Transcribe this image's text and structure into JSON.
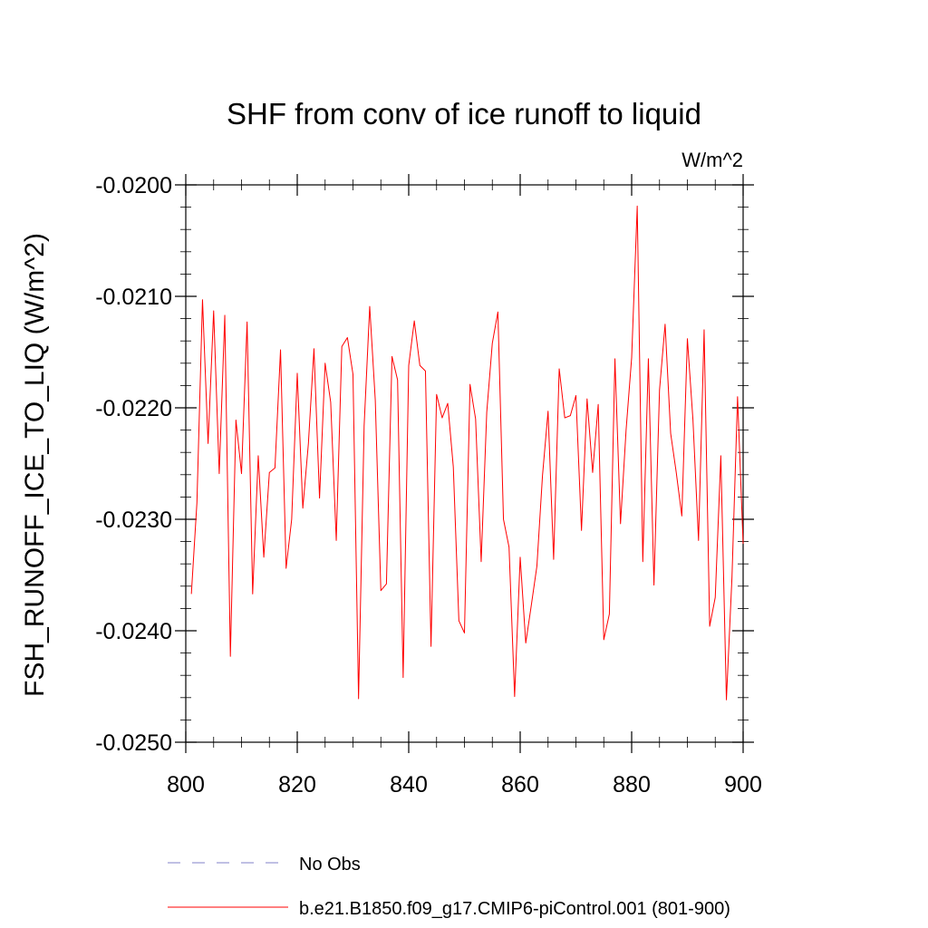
{
  "chart_data": {
    "type": "line",
    "title": "SHF from conv of ice runoff to liquid",
    "units": "W/m^2",
    "xlabel": "",
    "ylabel": "FSH_RUNOFF_ICE_TO_LIQ  (W/m^2)",
    "xlim": [
      800,
      900
    ],
    "ylim": [
      -0.025,
      -0.02
    ],
    "x_ticks": [
      800,
      820,
      840,
      860,
      880,
      900
    ],
    "y_ticks": [
      -0.025,
      -0.024,
      -0.023,
      -0.022,
      -0.021,
      -0.02
    ],
    "y_tick_labels": [
      "-0.0250",
      "-0.0240",
      "-0.0230",
      "-0.0220",
      "-0.0210",
      "-0.0200"
    ],
    "x": [
      801,
      802,
      803,
      804,
      805,
      806,
      807,
      808,
      809,
      810,
      811,
      812,
      813,
      814,
      815,
      816,
      817,
      818,
      819,
      820,
      821,
      822,
      823,
      824,
      825,
      826,
      827,
      828,
      829,
      830,
      831,
      832,
      833,
      834,
      835,
      836,
      837,
      838,
      839,
      840,
      841,
      842,
      843,
      844,
      845,
      846,
      847,
      848,
      849,
      850,
      851,
      852,
      853,
      854,
      855,
      856,
      857,
      858,
      859,
      860,
      861,
      862,
      863,
      864,
      865,
      866,
      867,
      868,
      869,
      870,
      871,
      872,
      873,
      874,
      875,
      876,
      877,
      878,
      879,
      880,
      881,
      882,
      883,
      884,
      885,
      886,
      887,
      888,
      889,
      890,
      891,
      892,
      893,
      894,
      895,
      896,
      897,
      898,
      899,
      900
    ],
    "series": [
      {
        "name": "b.e21.B1850.f09_g17.CMIP6-piControl.001 (801-900)",
        "color": "#ff0000",
        "values": [
          -0.02367,
          -0.02285,
          -0.02103,
          -0.02232,
          -0.02113,
          -0.02259,
          -0.02117,
          -0.02423,
          -0.02211,
          -0.02259,
          -0.02123,
          -0.02367,
          -0.02243,
          -0.02334,
          -0.02258,
          -0.02254,
          -0.02148,
          -0.02344,
          -0.023,
          -0.02169,
          -0.0229,
          -0.02232,
          -0.02147,
          -0.02281,
          -0.0216,
          -0.02195,
          -0.02319,
          -0.02145,
          -0.02137,
          -0.0217,
          -0.02461,
          -0.02216,
          -0.02109,
          -0.02193,
          -0.02364,
          -0.02358,
          -0.02154,
          -0.02175,
          -0.02442,
          -0.02162,
          -0.02122,
          -0.02162,
          -0.02167,
          -0.02414,
          -0.02188,
          -0.02209,
          -0.02196,
          -0.02253,
          -0.02391,
          -0.02402,
          -0.02179,
          -0.0221,
          -0.02338,
          -0.02204,
          -0.02142,
          -0.02114,
          -0.023,
          -0.02325,
          -0.02459,
          -0.02334,
          -0.02411,
          -0.02377,
          -0.02342,
          -0.02261,
          -0.02203,
          -0.02336,
          -0.02165,
          -0.02209,
          -0.02207,
          -0.02189,
          -0.0231,
          -0.02192,
          -0.02258,
          -0.02197,
          -0.02408,
          -0.02385,
          -0.02156,
          -0.02304,
          -0.0222,
          -0.02155,
          -0.02019,
          -0.02338,
          -0.02156,
          -0.02359,
          -0.02184,
          -0.02125,
          -0.02223,
          -0.02258,
          -0.02297,
          -0.02138,
          -0.02211,
          -0.02319,
          -0.0213,
          -0.02396,
          -0.0237,
          -0.02243,
          -0.02462,
          -0.02352,
          -0.0219,
          -0.02322
        ]
      }
    ],
    "legend": [
      {
        "label": "No Obs",
        "style": "dashed",
        "color": "#8080c8"
      },
      {
        "label": "b.e21.B1850.f09_g17.CMIP6-piControl.001 (801-900)",
        "style": "solid",
        "color": "#ff0000"
      }
    ],
    "legend_position": "bottom",
    "grid": false
  }
}
